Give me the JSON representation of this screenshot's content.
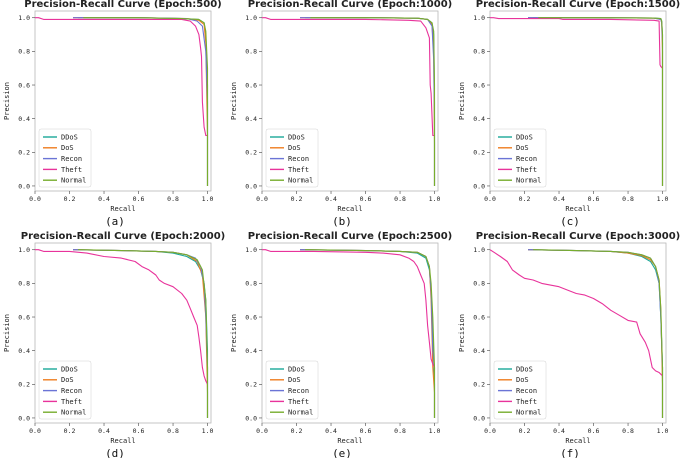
{
  "chart_data": [
    {
      "type": "line",
      "title": "Precision-Recall Curve (Epoch:500)",
      "caption": "(a)",
      "xlabel": "Recall",
      "ylabel": "Precision",
      "xlim": [
        0,
        1.02
      ],
      "ylim": [
        -0.03,
        1.04
      ],
      "xticks": [
        0.0,
        0.2,
        0.4,
        0.6,
        0.8,
        1.0
      ],
      "yticks": [
        0.0,
        0.2,
        0.4,
        0.6,
        0.8,
        1.0
      ],
      "legend_position": "lower-left",
      "series": [
        {
          "name": "DDoS",
          "color": "#1aa898",
          "x": [
            0.25,
            0.6,
            0.85,
            0.95,
            0.98,
            0.99,
            1.0,
            1.0
          ],
          "y": [
            1.0,
            1.0,
            0.995,
            0.99,
            0.97,
            0.9,
            0.6,
            0.0
          ]
        },
        {
          "name": "DoS",
          "color": "#ef7d20",
          "x": [
            0.22,
            0.6,
            0.88,
            0.95,
            0.98,
            0.99,
            1.0,
            1.0
          ],
          "y": [
            1.0,
            1.0,
            0.995,
            0.985,
            0.96,
            0.85,
            0.3,
            0.0
          ]
        },
        {
          "name": "Recon",
          "color": "#6b74d6",
          "x": [
            0.22,
            0.6,
            0.88,
            0.94,
            0.97,
            0.99,
            1.0,
            1.0
          ],
          "y": [
            1.0,
            1.0,
            0.995,
            0.98,
            0.95,
            0.8,
            0.5,
            0.0
          ]
        },
        {
          "name": "Theft",
          "color": "#e8339b",
          "x": [
            0.0,
            0.02,
            0.05,
            0.3,
            0.6,
            0.85,
            0.9,
            0.93,
            0.95,
            0.96,
            0.965,
            0.97,
            0.98,
            0.99,
            1.0
          ],
          "y": [
            1.0,
            1.0,
            0.99,
            0.99,
            0.99,
            0.99,
            0.98,
            0.95,
            0.9,
            0.82,
            0.77,
            0.5,
            0.35,
            0.3,
            0.3
          ]
        },
        {
          "name": "Normal",
          "color": "#77ad2d",
          "x": [
            0.28,
            0.6,
            0.85,
            0.95,
            0.98,
            0.99,
            1.0,
            1.0
          ],
          "y": [
            1.0,
            1.0,
            0.995,
            0.99,
            0.97,
            0.92,
            0.7,
            0.0
          ]
        }
      ]
    },
    {
      "type": "line",
      "title": "Precision-Recall Curve (Epoch:1000)",
      "caption": "(b)",
      "xlabel": "Recall",
      "ylabel": "Precision",
      "xlim": [
        0,
        1.02
      ],
      "ylim": [
        -0.03,
        1.04
      ],
      "xticks": [
        0.0,
        0.2,
        0.4,
        0.6,
        0.8,
        1.0
      ],
      "yticks": [
        0.0,
        0.2,
        0.4,
        0.6,
        0.8,
        1.0
      ],
      "legend_position": "lower-left",
      "series": [
        {
          "name": "DDoS",
          "color": "#1aa898",
          "x": [
            0.25,
            0.6,
            0.9,
            0.96,
            0.985,
            0.995,
            1.0,
            1.0
          ],
          "y": [
            1.0,
            1.0,
            0.997,
            0.99,
            0.97,
            0.9,
            0.5,
            0.0
          ]
        },
        {
          "name": "DoS",
          "color": "#ef7d20",
          "x": [
            0.22,
            0.6,
            0.9,
            0.96,
            0.985,
            0.995,
            1.0,
            1.0
          ],
          "y": [
            1.0,
            1.0,
            0.997,
            0.99,
            0.96,
            0.8,
            0.25,
            0.0
          ]
        },
        {
          "name": "Recon",
          "color": "#6b74d6",
          "x": [
            0.22,
            0.6,
            0.9,
            0.96,
            0.985,
            0.995,
            1.0,
            1.0
          ],
          "y": [
            1.0,
            1.0,
            0.997,
            0.99,
            0.95,
            0.75,
            0.4,
            0.0
          ]
        },
        {
          "name": "Theft",
          "color": "#e8339b",
          "x": [
            0.0,
            0.02,
            0.05,
            0.3,
            0.6,
            0.85,
            0.92,
            0.95,
            0.97,
            0.975,
            0.98,
            0.99,
            1.0
          ],
          "y": [
            1.0,
            1.0,
            0.99,
            0.99,
            0.99,
            0.985,
            0.98,
            0.94,
            0.88,
            0.6,
            0.55,
            0.3,
            0.3
          ]
        },
        {
          "name": "Normal",
          "color": "#77ad2d",
          "x": [
            0.28,
            0.6,
            0.9,
            0.96,
            0.985,
            0.995,
            1.0,
            1.0
          ],
          "y": [
            1.0,
            1.0,
            0.997,
            0.99,
            0.97,
            0.92,
            0.6,
            0.0
          ]
        }
      ]
    },
    {
      "type": "line",
      "title": "Precision-Recall Curve (Epoch:1500)",
      "caption": "(c)",
      "xlabel": "Recall",
      "ylabel": "Precision",
      "xlim": [
        0,
        1.02
      ],
      "ylim": [
        -0.03,
        1.04
      ],
      "xticks": [
        0.0,
        0.2,
        0.4,
        0.6,
        0.8,
        1.0
      ],
      "yticks": [
        0.0,
        0.2,
        0.4,
        0.6,
        0.8,
        1.0
      ],
      "legend_position": "lower-left",
      "series": [
        {
          "name": "DDoS",
          "color": "#1aa898",
          "x": [
            0.25,
            0.6,
            0.95,
            0.99,
            0.995,
            1.0,
            1.0
          ],
          "y": [
            1.0,
            1.0,
            0.998,
            0.995,
            0.98,
            0.9,
            0.0
          ]
        },
        {
          "name": "DoS",
          "color": "#ef7d20",
          "x": [
            0.22,
            0.6,
            0.95,
            0.99,
            0.995,
            1.0,
            1.0
          ],
          "y": [
            1.0,
            1.0,
            0.998,
            0.99,
            0.97,
            0.8,
            0.0
          ]
        },
        {
          "name": "Recon",
          "color": "#6b74d6",
          "x": [
            0.22,
            0.6,
            0.95,
            0.99,
            0.995,
            1.0,
            1.0
          ],
          "y": [
            1.0,
            1.0,
            0.998,
            0.99,
            0.97,
            0.85,
            0.0
          ]
        },
        {
          "name": "Theft",
          "color": "#e8339b",
          "x": [
            0.0,
            0.02,
            0.05,
            0.4,
            0.42,
            0.7,
            0.95,
            0.98,
            0.985,
            0.99,
            1.0
          ],
          "y": [
            1.0,
            1.0,
            0.995,
            0.995,
            0.99,
            0.99,
            0.985,
            0.98,
            0.72,
            0.71,
            0.7
          ]
        },
        {
          "name": "Normal",
          "color": "#77ad2d",
          "x": [
            0.28,
            0.6,
            0.95,
            0.99,
            0.995,
            1.0,
            1.0
          ],
          "y": [
            1.0,
            1.0,
            0.998,
            0.995,
            0.98,
            0.9,
            0.0
          ]
        }
      ]
    },
    {
      "type": "line",
      "title": "Precision-Recall Curve (Epoch:2000)",
      "caption": "(d)",
      "xlabel": "Recall",
      "ylabel": "Precision",
      "xlim": [
        0,
        1.02
      ],
      "ylim": [
        -0.03,
        1.04
      ],
      "xticks": [
        0.0,
        0.2,
        0.4,
        0.6,
        0.8,
        1.0
      ],
      "yticks": [
        0.0,
        0.2,
        0.4,
        0.6,
        0.8,
        1.0
      ],
      "legend_position": "lower-left",
      "series": [
        {
          "name": "DDoS",
          "color": "#1aa898",
          "x": [
            0.22,
            0.5,
            0.7,
            0.8,
            0.88,
            0.93,
            0.96,
            0.98,
            0.99,
            1.0,
            1.0
          ],
          "y": [
            1.0,
            0.995,
            0.99,
            0.98,
            0.96,
            0.93,
            0.88,
            0.8,
            0.7,
            0.4,
            0.0
          ]
        },
        {
          "name": "DoS",
          "color": "#ef7d20",
          "x": [
            0.22,
            0.5,
            0.7,
            0.8,
            0.88,
            0.94,
            0.97,
            0.99,
            1.0,
            1.0
          ],
          "y": [
            1.0,
            0.995,
            0.99,
            0.985,
            0.97,
            0.93,
            0.85,
            0.6,
            0.15,
            0.0
          ]
        },
        {
          "name": "Recon",
          "color": "#6b74d6",
          "x": [
            0.22,
            0.5,
            0.7,
            0.8,
            0.88,
            0.93,
            0.96,
            0.98,
            0.99,
            1.0,
            1.0
          ],
          "y": [
            1.0,
            0.995,
            0.99,
            0.985,
            0.97,
            0.95,
            0.9,
            0.8,
            0.6,
            0.3,
            0.0
          ]
        },
        {
          "name": "Theft",
          "color": "#e8339b",
          "x": [
            0.0,
            0.02,
            0.05,
            0.2,
            0.3,
            0.4,
            0.5,
            0.58,
            0.62,
            0.66,
            0.7,
            0.72,
            0.75,
            0.8,
            0.85,
            0.88,
            0.9,
            0.92,
            0.94,
            0.95,
            0.96,
            0.97,
            0.98,
            0.99,
            1.0
          ],
          "y": [
            1.0,
            1.0,
            0.99,
            0.99,
            0.98,
            0.96,
            0.95,
            0.93,
            0.9,
            0.88,
            0.85,
            0.82,
            0.8,
            0.78,
            0.74,
            0.7,
            0.65,
            0.6,
            0.55,
            0.48,
            0.4,
            0.3,
            0.25,
            0.22,
            0.2
          ]
        },
        {
          "name": "Normal",
          "color": "#77ad2d",
          "x": [
            0.25,
            0.5,
            0.7,
            0.8,
            0.88,
            0.94,
            0.97,
            0.99,
            1.0,
            1.0
          ],
          "y": [
            1.0,
            0.995,
            0.99,
            0.985,
            0.97,
            0.94,
            0.88,
            0.7,
            0.3,
            0.0
          ]
        }
      ]
    },
    {
      "type": "line",
      "title": "Precision-Recall Curve (Epoch:2500)",
      "caption": "(e)",
      "xlabel": "Recall",
      "ylabel": "Precision",
      "xlim": [
        0,
        1.02
      ],
      "ylim": [
        -0.03,
        1.04
      ],
      "xticks": [
        0.0,
        0.2,
        0.4,
        0.6,
        0.8,
        1.0
      ],
      "yticks": [
        0.0,
        0.2,
        0.4,
        0.6,
        0.8,
        1.0
      ],
      "legend_position": "lower-left",
      "series": [
        {
          "name": "DDoS",
          "color": "#1aa898",
          "x": [
            0.22,
            0.6,
            0.8,
            0.9,
            0.95,
            0.97,
            0.98,
            0.99,
            1.0,
            1.0
          ],
          "y": [
            1.0,
            0.995,
            0.99,
            0.98,
            0.95,
            0.88,
            0.75,
            0.5,
            0.2,
            0.0
          ]
        },
        {
          "name": "DoS",
          "color": "#ef7d20",
          "x": [
            0.22,
            0.6,
            0.8,
            0.9,
            0.95,
            0.97,
            0.98,
            0.99,
            1.0,
            1.0
          ],
          "y": [
            1.0,
            0.995,
            0.99,
            0.985,
            0.96,
            0.9,
            0.7,
            0.3,
            0.15,
            0.0
          ]
        },
        {
          "name": "Recon",
          "color": "#6b74d6",
          "x": [
            0.22,
            0.6,
            0.8,
            0.9,
            0.95,
            0.97,
            0.98,
            0.99,
            1.0,
            1.0
          ],
          "y": [
            1.0,
            0.995,
            0.99,
            0.985,
            0.96,
            0.9,
            0.75,
            0.4,
            0.3,
            0.0
          ]
        },
        {
          "name": "Theft",
          "color": "#e8339b",
          "x": [
            0.0,
            0.02,
            0.05,
            0.3,
            0.6,
            0.7,
            0.8,
            0.85,
            0.88,
            0.9,
            0.92,
            0.94,
            0.95,
            0.96,
            0.97,
            0.98,
            0.99,
            1.0
          ],
          "y": [
            1.0,
            1.0,
            0.99,
            0.99,
            0.985,
            0.98,
            0.97,
            0.95,
            0.93,
            0.9,
            0.85,
            0.8,
            0.7,
            0.55,
            0.45,
            0.35,
            0.32,
            0.3
          ]
        },
        {
          "name": "Normal",
          "color": "#77ad2d",
          "x": [
            0.25,
            0.6,
            0.8,
            0.9,
            0.95,
            0.97,
            0.98,
            0.99,
            1.0,
            1.0
          ],
          "y": [
            1.0,
            0.995,
            0.99,
            0.985,
            0.96,
            0.9,
            0.8,
            0.6,
            0.3,
            0.0
          ]
        }
      ]
    },
    {
      "type": "line",
      "title": "Precision-Recall Curve (Epoch:3000)",
      "caption": "(f)",
      "xlabel": "Recall",
      "ylabel": "Precision",
      "xlim": [
        0,
        1.02
      ],
      "ylim": [
        -0.03,
        1.04
      ],
      "xticks": [
        0.0,
        0.2,
        0.4,
        0.6,
        0.8,
        1.0
      ],
      "yticks": [
        0.0,
        0.2,
        0.4,
        0.6,
        0.8,
        1.0
      ],
      "legend_position": "lower-left",
      "series": [
        {
          "name": "DDoS",
          "color": "#1aa898",
          "x": [
            0.22,
            0.5,
            0.7,
            0.8,
            0.88,
            0.93,
            0.96,
            0.98,
            0.99,
            1.0,
            1.0
          ],
          "y": [
            1.0,
            0.995,
            0.99,
            0.98,
            0.96,
            0.93,
            0.88,
            0.8,
            0.6,
            0.3,
            0.0
          ]
        },
        {
          "name": "DoS",
          "color": "#ef7d20",
          "x": [
            0.22,
            0.5,
            0.7,
            0.8,
            0.88,
            0.93,
            0.96,
            0.98,
            0.99,
            1.0,
            1.0
          ],
          "y": [
            1.0,
            0.995,
            0.99,
            0.98,
            0.965,
            0.94,
            0.9,
            0.82,
            0.65,
            0.2,
            0.0
          ]
        },
        {
          "name": "Recon",
          "color": "#6b74d6",
          "x": [
            0.22,
            0.5,
            0.7,
            0.8,
            0.88,
            0.93,
            0.96,
            0.98,
            0.99,
            1.0,
            1.0
          ],
          "y": [
            1.0,
            0.995,
            0.99,
            0.985,
            0.97,
            0.95,
            0.9,
            0.8,
            0.6,
            0.3,
            0.0
          ]
        },
        {
          "name": "Theft",
          "color": "#e8339b",
          "x": [
            0.0,
            0.03,
            0.06,
            0.1,
            0.13,
            0.17,
            0.2,
            0.25,
            0.3,
            0.35,
            0.4,
            0.45,
            0.5,
            0.55,
            0.6,
            0.65,
            0.7,
            0.75,
            0.8,
            0.85,
            0.87,
            0.9,
            0.92,
            0.94,
            0.96,
            0.98,
            0.99,
            1.0
          ],
          "y": [
            1.0,
            0.98,
            0.96,
            0.93,
            0.88,
            0.85,
            0.83,
            0.82,
            0.8,
            0.79,
            0.78,
            0.76,
            0.74,
            0.73,
            0.71,
            0.68,
            0.64,
            0.61,
            0.58,
            0.57,
            0.5,
            0.45,
            0.4,
            0.3,
            0.28,
            0.27,
            0.26,
            0.25
          ]
        },
        {
          "name": "Normal",
          "color": "#77ad2d",
          "x": [
            0.25,
            0.5,
            0.7,
            0.8,
            0.88,
            0.93,
            0.96,
            0.98,
            0.99,
            1.0,
            1.0
          ],
          "y": [
            1.0,
            0.995,
            0.99,
            0.985,
            0.97,
            0.95,
            0.9,
            0.82,
            0.65,
            0.3,
            0.0
          ]
        }
      ]
    }
  ]
}
